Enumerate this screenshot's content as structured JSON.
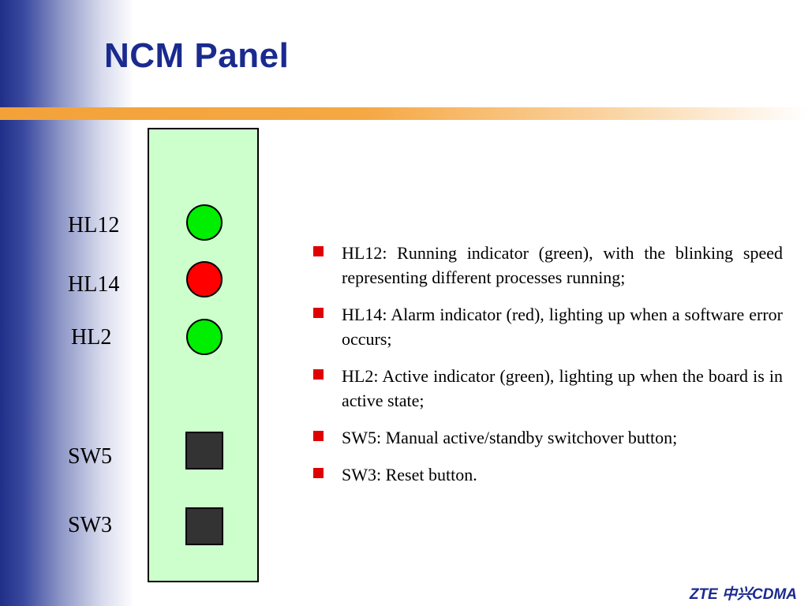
{
  "title": "NCM Panel",
  "panel": {
    "leds": [
      {
        "label": "HL12",
        "color": "#00ee00"
      },
      {
        "label": "HL14",
        "color": "#ff0000"
      },
      {
        "label": "HL2",
        "color": "#00ee00"
      }
    ],
    "switches": [
      {
        "label": "SW5"
      },
      {
        "label": "SW3"
      }
    ]
  },
  "bullets": [
    "HL12: Running indicator (green), with the blinking speed representing different processes running;",
    "HL14: Alarm indicator (red), lighting up when a software error occurs;",
    "HL2: Active indicator (green), lighting up when the board is in active state;",
    "SW5: Manual active/standby switchover button;",
    "SW3: Reset button."
  ],
  "footer": "ZTE 中兴CDMA",
  "colors": {
    "title": "#1a2a8f",
    "panel_fill": "#ccffcc",
    "bullet_mark": "#e00000",
    "accent_rule": "#f5a843"
  }
}
